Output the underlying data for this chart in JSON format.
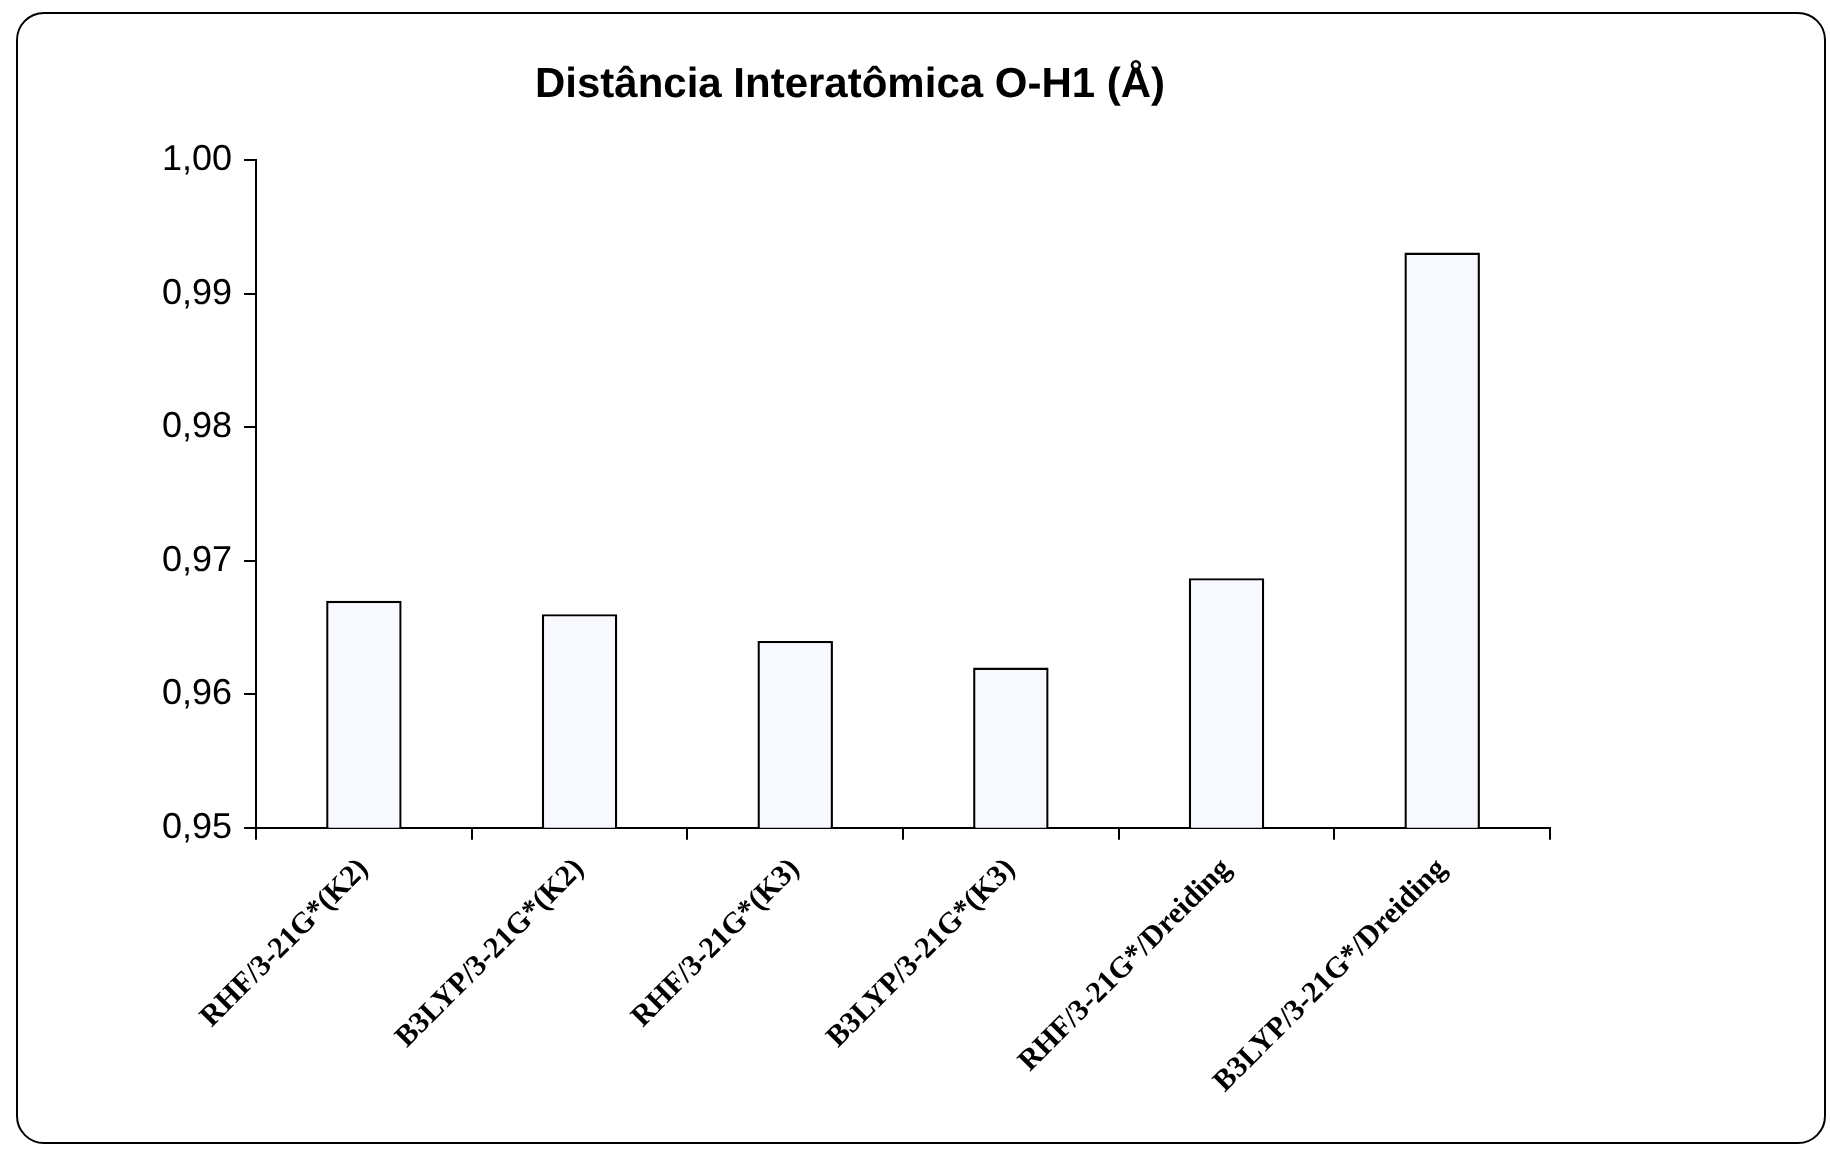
{
  "chart_data": {
    "type": "bar",
    "title": "Distância Interatômica O-H1 (Å)",
    "categories": [
      "RHF/3-21G*(K2)",
      "B3LYP/3-21G*(K2)",
      "RHF/3-21G*(K3)",
      "B3LYP/3-21G*(K3)",
      "RHF/3-21G*/Dreiding",
      "B3LYP/3-21G*/Dreiding"
    ],
    "values": [
      0.967,
      0.966,
      0.964,
      0.962,
      0.9687,
      0.9931
    ],
    "color": "#f8f8ff",
    "ylim": [
      0.95,
      1.0
    ],
    "yticks": [
      {
        "value": 0.95,
        "label": "0,95"
      },
      {
        "value": 0.96,
        "label": "0,96"
      },
      {
        "value": 0.97,
        "label": "0,97"
      },
      {
        "value": 0.98,
        "label": "0,98"
      },
      {
        "value": 0.99,
        "label": "0,99"
      },
      {
        "value": 1.0,
        "label": "1,00"
      }
    ],
    "grid": false,
    "legend": false
  }
}
